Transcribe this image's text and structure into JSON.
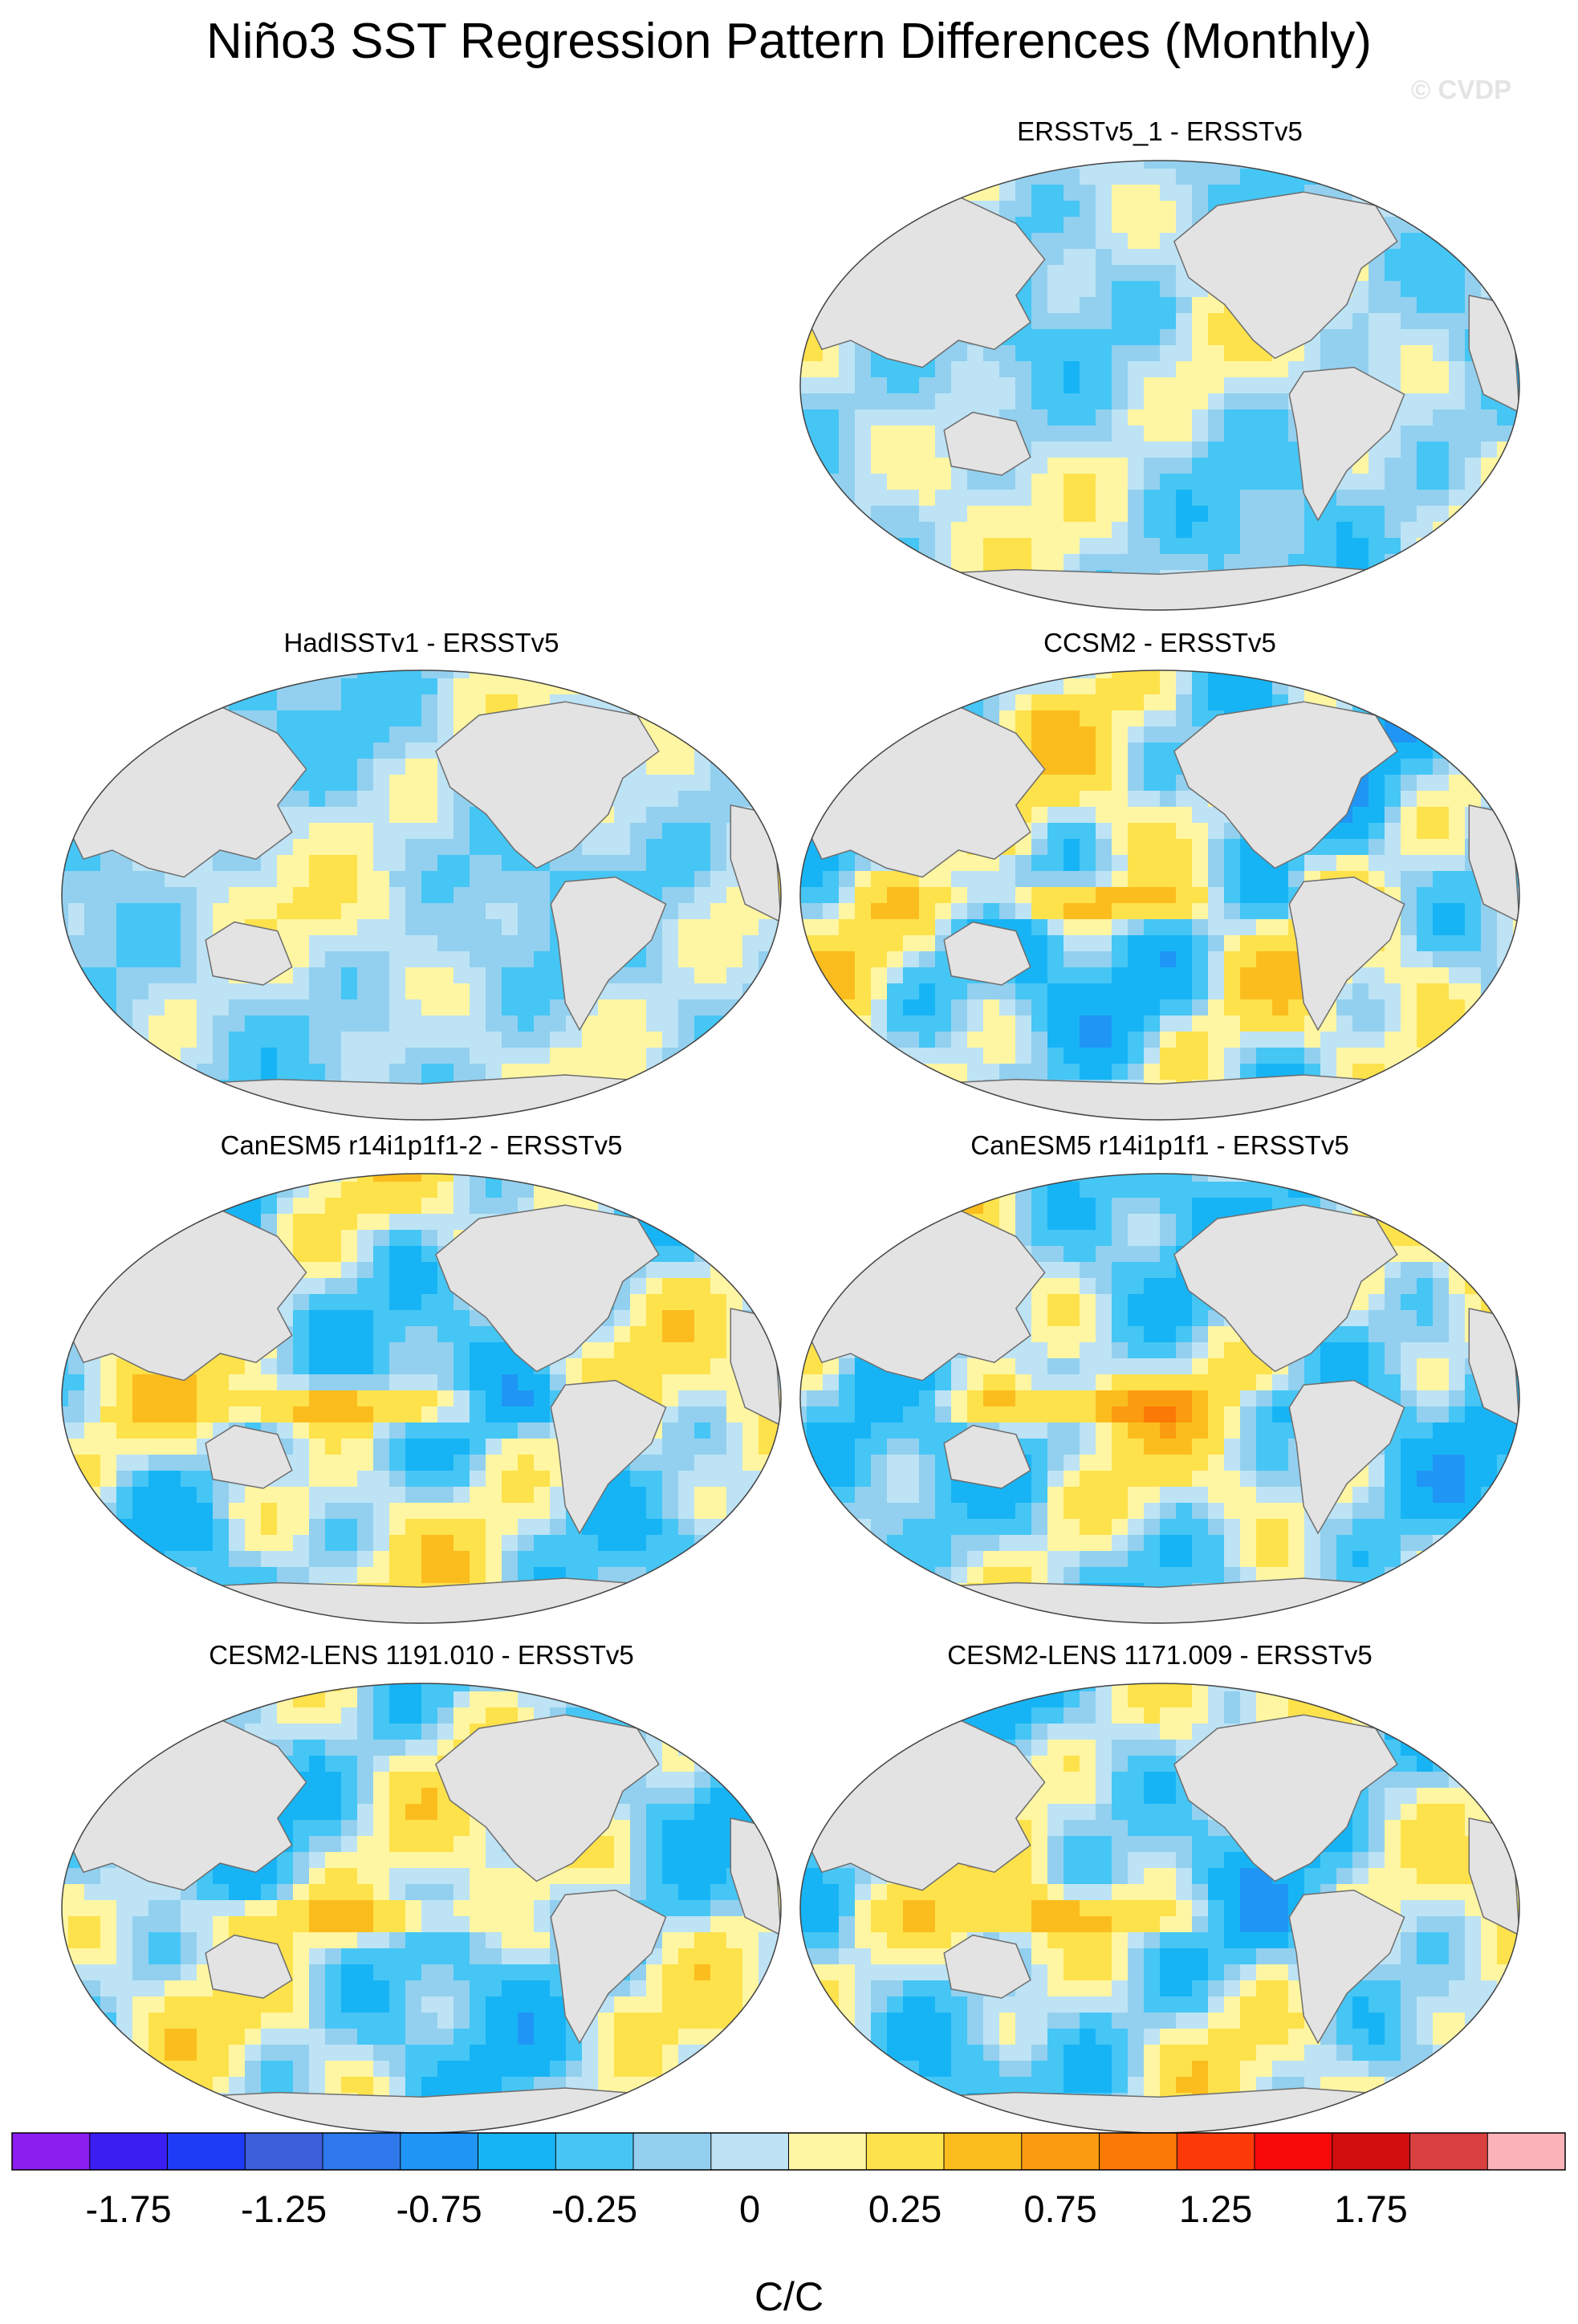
{
  "title": "Niño3 SST Regression Pattern Differences (Monthly)",
  "watermark": "© CVDP",
  "colors": {
    "land": "#e3e3e3",
    "coast": "#6e6e6e",
    "ocean_neg": "#bde3f5",
    "ocean_pos": "#fff6a3"
  },
  "chart_data": {
    "type": "heatmap",
    "projection": "global ellipse (Pacific-centered)",
    "panels": [
      {
        "id": "p1",
        "title": "ERSSTv5_1 - ERSSTv5",
        "pattern": {
          "amp": 0.35,
          "enso": 0.0,
          "seed": 3
        }
      },
      {
        "id": "p2",
        "title": "HadISSTv1 - ERSSTv5",
        "pattern": {
          "amp": 0.3,
          "enso": 0.1,
          "seed": 7
        }
      },
      {
        "id": "p3",
        "title": "CCSM2 - ERSSTv5",
        "pattern": {
          "amp": 0.7,
          "enso": 0.9,
          "seed": 11
        }
      },
      {
        "id": "p4",
        "title": "CanESM5 r14i1p1f1-2 - ERSSTv5",
        "pattern": {
          "amp": 0.6,
          "enso": 1.0,
          "seed": 5
        }
      },
      {
        "id": "p5",
        "title": "CanESM5 r14i1p1f1 - ERSSTv5",
        "pattern": {
          "amp": 0.6,
          "enso": 0.95,
          "seed": 9
        }
      },
      {
        "id": "p6",
        "title": "CESM2-LENS 1191.010 - ERSSTv5",
        "pattern": {
          "amp": 0.55,
          "enso": 0.7,
          "seed": 13
        }
      },
      {
        "id": "p7",
        "title": "CESM2-LENS 1171.009 - ERSSTv5",
        "pattern": {
          "amp": 0.55,
          "enso": 0.65,
          "seed": 17
        }
      }
    ],
    "colorbar": {
      "label": "C/C",
      "ticks": [
        "-1.75",
        "-1.25",
        "-0.75",
        "-0.25",
        "0",
        "0.25",
        "0.75",
        "1.25",
        "1.75"
      ],
      "tick_values": [
        -1.75,
        -1.25,
        -0.75,
        -0.25,
        0,
        0.25,
        0.75,
        1.25,
        1.75
      ],
      "levels": [
        -2,
        -1.75,
        -1.5,
        -1.25,
        -1,
        -0.75,
        -0.5,
        -0.25,
        -0.1,
        0,
        0.1,
        0.25,
        0.5,
        0.75,
        1,
        1.25,
        1.5,
        1.75,
        2,
        2.25
      ],
      "colors": [
        "#8c1ef0",
        "#3a1ef2",
        "#1e3cf5",
        "#3d5fdc",
        "#2d78ea",
        "#1f96f5",
        "#17b4f5",
        "#45c6f5",
        "#93d0ef",
        "#bde3f5",
        "#fff6a3",
        "#fde24c",
        "#fbbd1e",
        "#fb9c10",
        "#fb7a06",
        "#fb3a0a",
        "#f90a0a",
        "#d20f0f",
        "#d94040",
        "#fbb2b8"
      ]
    }
  }
}
